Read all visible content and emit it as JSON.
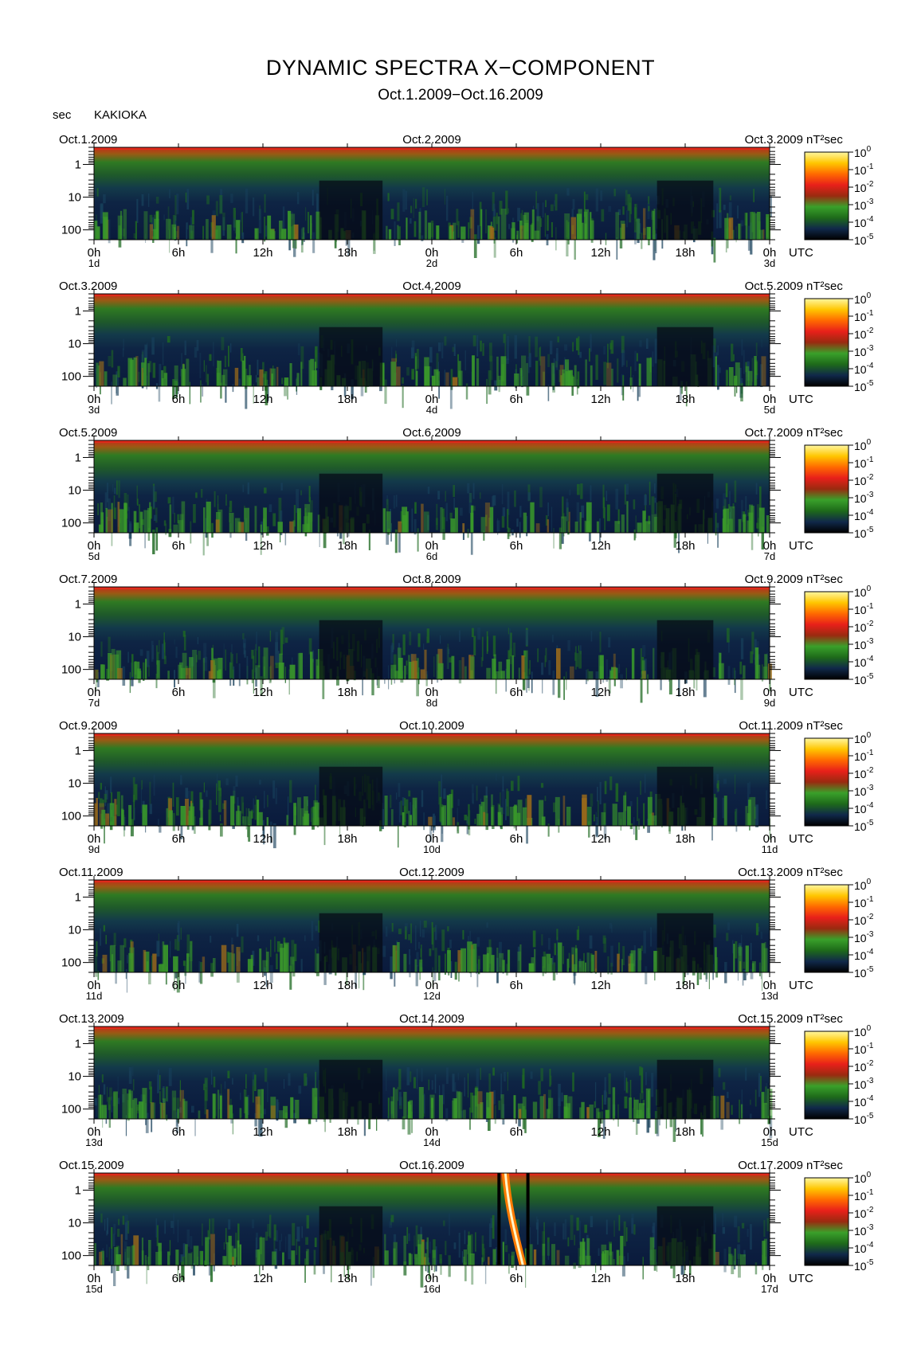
{
  "header": {
    "title": "DYNAMIC SPECTRA X−COMPONENT",
    "subtitle": "Oct.1.2009−Oct.16.2009",
    "unit_left": "sec",
    "station": "KAKIOKA"
  },
  "axis": {
    "y_tick_labels": [
      "1",
      "10",
      "100"
    ],
    "x_tick_labels": [
      "0h",
      "6h",
      "12h",
      "18h",
      "0h",
      "6h",
      "12h",
      "18h",
      "0h"
    ],
    "x_unit": "UTC",
    "colorbar_unit": "nT²sec",
    "colorbar_bases": [
      "10",
      "10",
      "10",
      "10",
      "10",
      "10"
    ],
    "colorbar_exponents": [
      "0",
      "-1",
      "-2",
      "-3",
      "-4",
      "-5"
    ]
  },
  "colors": {
    "background": "#ffffff",
    "spectrogram_low": "#0b1a3a",
    "spectrogram_mid": "#1f6a1f",
    "spectrogram_high": "#c8281e",
    "colorbar": [
      "#fff7a0",
      "#ffc600",
      "#ff6a00",
      "#e8201a",
      "#9a2a10",
      "#3aa02a",
      "#1e6a1a",
      "#10284a",
      "#000000"
    ]
  },
  "panels": [
    {
      "date_left": "Oct.1.2009",
      "date_mid": "Oct.2.2009",
      "date_right": "Oct.3.2009",
      "day_left": "1d",
      "day_mid": "2d",
      "day_right": "3d"
    },
    {
      "date_left": "Oct.3.2009",
      "date_mid": "Oct.4.2009",
      "date_right": "Oct.5.2009",
      "day_left": "3d",
      "day_mid": "4d",
      "day_right": "5d"
    },
    {
      "date_left": "Oct.5.2009",
      "date_mid": "Oct.6.2009",
      "date_right": "Oct.7.2009",
      "day_left": "5d",
      "day_mid": "6d",
      "day_right": "7d"
    },
    {
      "date_left": "Oct.7.2009",
      "date_mid": "Oct.8.2009",
      "date_right": "Oct.9.2009",
      "day_left": "7d",
      "day_mid": "8d",
      "day_right": "9d"
    },
    {
      "date_left": "Oct.9.2009",
      "date_mid": "Oct.10.2009",
      "date_right": "Oct.11.2009",
      "day_left": "9d",
      "day_mid": "10d",
      "day_right": "11d"
    },
    {
      "date_left": "Oct.11.2009",
      "date_mid": "Oct.12.2009",
      "date_right": "Oct.13.2009",
      "day_left": "11d",
      "day_mid": "12d",
      "day_right": "13d"
    },
    {
      "date_left": "Oct.13.2009",
      "date_mid": "Oct.14.2009",
      "date_right": "Oct.15.2009",
      "day_left": "13d",
      "day_mid": "14d",
      "day_right": "15d"
    },
    {
      "date_left": "Oct.15.2009",
      "date_mid": "Oct.16.2009",
      "date_right": "Oct.17.2009",
      "day_left": "15d",
      "day_mid": "16d",
      "day_right": "17d"
    }
  ],
  "chart_data": {
    "type": "heatmap",
    "title": "DYNAMIC SPECTRA X−COMPONENT",
    "subtitle": "Oct.1.2009−Oct.16.2009",
    "station": "KAKIOKA",
    "xlabel": "UTC",
    "ylabel": "sec",
    "y_scale": "log",
    "ylim": [
      0.3,
      200
    ],
    "x_range_hours_per_panel": 48,
    "colorbar_label": "nT²sec",
    "colorbar_range": [
      "1e-5",
      "1e0"
    ],
    "grid": false,
    "panel_count": 8,
    "notable_features": [
      {
        "panel": 8,
        "time": "Oct.16.2009 ~05:00–07:00 UTC",
        "description": "strong broadband event across all periods"
      }
    ]
  }
}
